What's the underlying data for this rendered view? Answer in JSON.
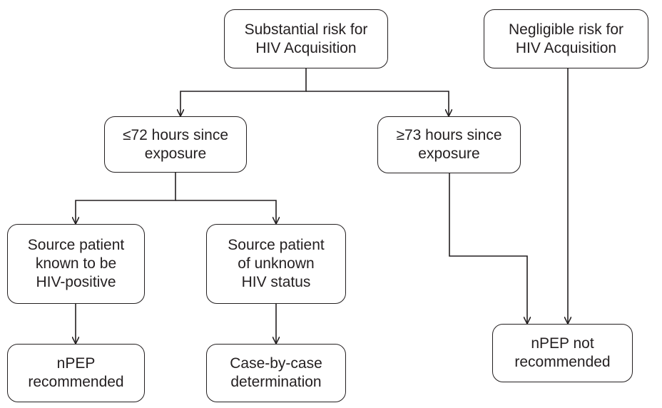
{
  "flowchart": {
    "nodes": {
      "substantial_risk": "Substantial risk for\nHIV Acquisition",
      "negligible_risk": "Negligible risk for\nHIV Acquisition",
      "within_72h": "≤72 hours since\nexposure",
      "after_73h": "≥73 hours since\nexposure",
      "source_positive": "Source patient\nknown to be\nHIV-positive",
      "source_unknown": "Source patient\nof unknown\nHIV status",
      "npep_recommended": "nPEP\nrecommended",
      "case_by_case": "Case-by-case\ndetermination",
      "npep_not_recommended": "nPEP not\nrecommended"
    },
    "edges": [
      {
        "from": "substantial_risk",
        "to": "within_72h"
      },
      {
        "from": "substantial_risk",
        "to": "after_73h"
      },
      {
        "from": "within_72h",
        "to": "source_positive"
      },
      {
        "from": "within_72h",
        "to": "source_unknown"
      },
      {
        "from": "source_positive",
        "to": "npep_recommended"
      },
      {
        "from": "source_unknown",
        "to": "case_by_case"
      },
      {
        "from": "after_73h",
        "to": "npep_not_recommended"
      },
      {
        "from": "negligible_risk",
        "to": "npep_not_recommended"
      }
    ],
    "colors": {
      "line": "#231f20",
      "background": "#ffffff"
    }
  }
}
